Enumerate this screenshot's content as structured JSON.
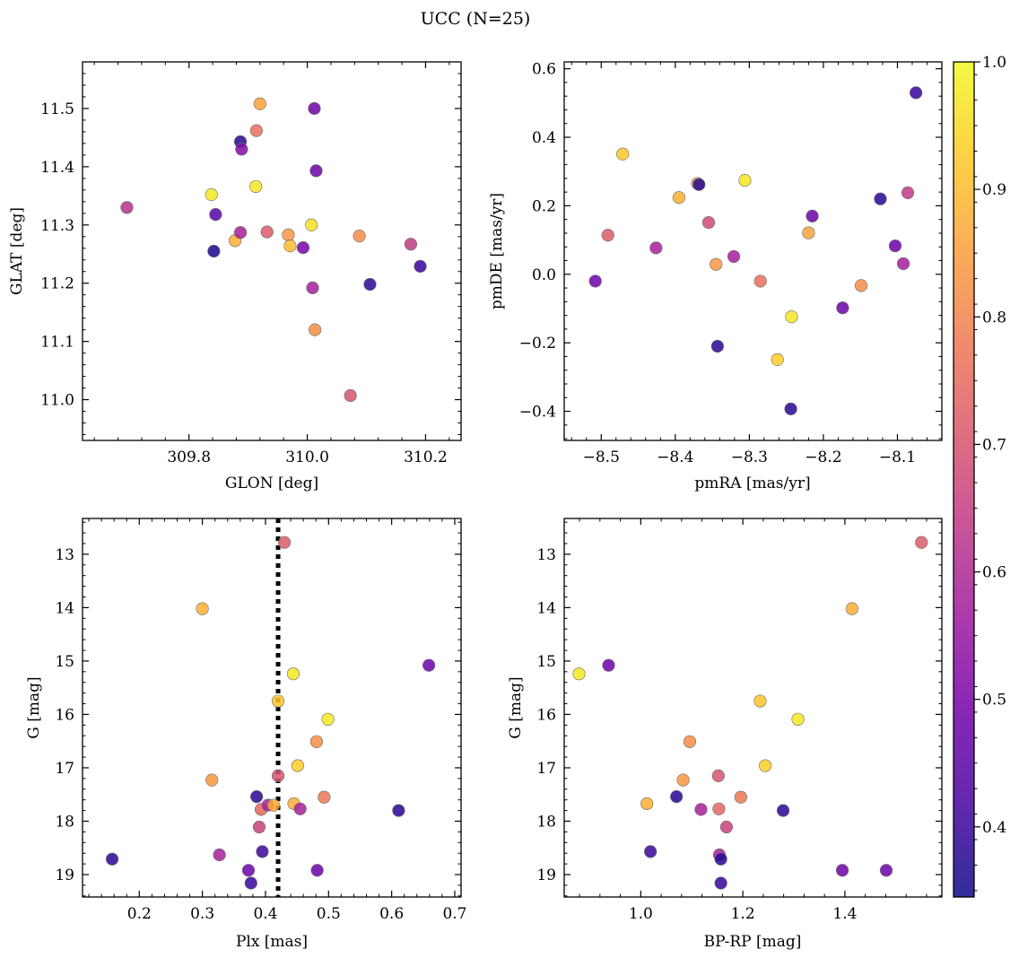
{
  "figure": {
    "title": "UCC (N=25)",
    "colorbar": {
      "range": [
        0.345,
        1.0
      ],
      "ticks": [
        0.4,
        0.5,
        0.6,
        0.7,
        0.8,
        0.9,
        1.0
      ],
      "tick_labels": [
        "0.4",
        "0.5",
        "0.6",
        "0.7",
        "0.8",
        "0.9",
        "1.0"
      ],
      "colormap": "plasma",
      "colormap_stops": [
        "#0d0887",
        "#46039f",
        "#7201a8",
        "#9c179e",
        "#bd3786",
        "#d8576b",
        "#ed7953",
        "#fb9f3a",
        "#fdca26",
        "#f0f921"
      ]
    }
  },
  "chart_data": [
    {
      "type": "scatter",
      "xlabel": "GLON [deg]",
      "ylabel": "GLAT [deg]",
      "xlim": [
        309.62,
        310.26
      ],
      "ylim": [
        10.93,
        11.58
      ],
      "invert_y": false,
      "xticks": [
        309.8,
        310.0,
        310.2
      ],
      "xtick_labels": [
        "309.8",
        "310.0",
        "310.2"
      ],
      "yticks": [
        11.0,
        11.1,
        11.2,
        11.3,
        11.4,
        11.5
      ],
      "ytick_labels": [
        "11.0",
        "11.1",
        "11.2",
        "11.3",
        "11.4",
        "11.5"
      ],
      "points": [
        {
          "x": 309.695,
          "y": 11.33,
          "c": 0.62
        },
        {
          "x": 309.838,
          "y": 11.352,
          "c": 0.97
        },
        {
          "x": 309.842,
          "y": 11.255,
          "c": 0.36
        },
        {
          "x": 309.845,
          "y": 11.318,
          "c": 0.44
        },
        {
          "x": 309.878,
          "y": 11.273,
          "c": 0.88
        },
        {
          "x": 309.887,
          "y": 11.443,
          "c": 0.38
        },
        {
          "x": 309.887,
          "y": 11.287,
          "c": 0.58
        },
        {
          "x": 309.889,
          "y": 11.43,
          "c": 0.52
        },
        {
          "x": 309.913,
          "y": 11.366,
          "c": 0.97
        },
        {
          "x": 309.914,
          "y": 11.462,
          "c": 0.76
        },
        {
          "x": 309.92,
          "y": 11.508,
          "c": 0.86
        },
        {
          "x": 309.932,
          "y": 11.288,
          "c": 0.72
        },
        {
          "x": 309.968,
          "y": 11.283,
          "c": 0.84
        },
        {
          "x": 309.971,
          "y": 11.264,
          "c": 0.9
        },
        {
          "x": 309.993,
          "y": 11.261,
          "c": 0.5
        },
        {
          "x": 310.007,
          "y": 11.3,
          "c": 0.96
        },
        {
          "x": 310.009,
          "y": 11.192,
          "c": 0.58
        },
        {
          "x": 310.012,
          "y": 11.5,
          "c": 0.48
        },
        {
          "x": 310.013,
          "y": 11.12,
          "c": 0.82
        },
        {
          "x": 310.015,
          "y": 11.393,
          "c": 0.48
        },
        {
          "x": 310.073,
          "y": 11.007,
          "c": 0.7
        },
        {
          "x": 310.088,
          "y": 11.281,
          "c": 0.82
        },
        {
          "x": 310.106,
          "y": 11.198,
          "c": 0.38
        },
        {
          "x": 310.175,
          "y": 11.267,
          "c": 0.64
        },
        {
          "x": 310.191,
          "y": 11.229,
          "c": 0.4
        }
      ]
    },
    {
      "type": "scatter",
      "xlabel": "pmRA [mas/yr]",
      "ylabel": "pmDE [mas/yr]",
      "xlim": [
        -8.55,
        -8.04
      ],
      "ylim": [
        -0.485,
        0.62
      ],
      "invert_y": false,
      "xticks": [
        -8.5,
        -8.4,
        -8.3,
        -8.2,
        -8.1
      ],
      "xtick_labels": [
        "−8.5",
        "−8.4",
        "−8.3",
        "−8.2",
        "−8.1"
      ],
      "yticks": [
        -0.4,
        -0.2,
        0.0,
        0.2,
        0.4,
        0.6
      ],
      "ytick_labels": [
        "−0.4",
        "−0.2",
        "0.0",
        "0.2",
        "0.4",
        "0.6"
      ],
      "points": [
        {
          "x": -8.508,
          "y": -0.02,
          "c": 0.48
        },
        {
          "x": -8.491,
          "y": 0.114,
          "c": 0.72
        },
        {
          "x": -8.471,
          "y": 0.351,
          "c": 0.92
        },
        {
          "x": -8.426,
          "y": 0.077,
          "c": 0.58
        },
        {
          "x": -8.395,
          "y": 0.224,
          "c": 0.88
        },
        {
          "x": -8.37,
          "y": 0.265,
          "c": 0.87
        },
        {
          "x": -8.368,
          "y": 0.262,
          "c": 0.38
        },
        {
          "x": -8.355,
          "y": 0.151,
          "c": 0.68
        },
        {
          "x": -8.345,
          "y": 0.029,
          "c": 0.84
        },
        {
          "x": -8.343,
          "y": -0.21,
          "c": 0.38
        },
        {
          "x": -8.321,
          "y": 0.052,
          "c": 0.58
        },
        {
          "x": -8.306,
          "y": 0.274,
          "c": 0.97
        },
        {
          "x": -8.285,
          "y": -0.02,
          "c": 0.76
        },
        {
          "x": -8.262,
          "y": -0.249,
          "c": 0.93
        },
        {
          "x": -8.244,
          "y": -0.393,
          "c": 0.38
        },
        {
          "x": -8.243,
          "y": -0.124,
          "c": 0.97
        },
        {
          "x": -8.22,
          "y": 0.121,
          "c": 0.86
        },
        {
          "x": -8.215,
          "y": 0.17,
          "c": 0.48
        },
        {
          "x": -8.174,
          "y": -0.098,
          "c": 0.48
        },
        {
          "x": -8.149,
          "y": -0.033,
          "c": 0.82
        },
        {
          "x": -8.123,
          "y": 0.22,
          "c": 0.38
        },
        {
          "x": -8.103,
          "y": 0.083,
          "c": 0.48
        },
        {
          "x": -8.092,
          "y": 0.031,
          "c": 0.58
        },
        {
          "x": -8.086,
          "y": 0.238,
          "c": 0.64
        },
        {
          "x": -8.075,
          "y": 0.53,
          "c": 0.4
        }
      ]
    },
    {
      "type": "scatter",
      "xlabel": "Plx [mas]",
      "ylabel": "G [mag]",
      "xlim": [
        0.11,
        0.71
      ],
      "ylim": [
        12.33,
        19.42
      ],
      "invert_y": true,
      "xticks": [
        0.2,
        0.3,
        0.4,
        0.5,
        0.6,
        0.7
      ],
      "xtick_labels": [
        "0.2",
        "0.3",
        "0.4",
        "0.5",
        "0.6",
        "0.7"
      ],
      "yticks": [
        13,
        14,
        15,
        16,
        17,
        18,
        19
      ],
      "ytick_labels": [
        "13",
        "14",
        "15",
        "16",
        "17",
        "18",
        "19"
      ],
      "vline": {
        "x": 0.42,
        "style": "dotted",
        "color": "#000000"
      },
      "points": [
        {
          "x": 0.157,
          "y": 18.71,
          "c": 0.38
        },
        {
          "x": 0.3,
          "y": 14.02,
          "c": 0.88
        },
        {
          "x": 0.315,
          "y": 17.23,
          "c": 0.84
        },
        {
          "x": 0.327,
          "y": 18.63,
          "c": 0.58
        },
        {
          "x": 0.373,
          "y": 18.92,
          "c": 0.48
        },
        {
          "x": 0.377,
          "y": 19.16,
          "c": 0.4
        },
        {
          "x": 0.386,
          "y": 17.54,
          "c": 0.38
        },
        {
          "x": 0.39,
          "y": 18.11,
          "c": 0.66
        },
        {
          "x": 0.393,
          "y": 17.78,
          "c": 0.74
        },
        {
          "x": 0.395,
          "y": 18.57,
          "c": 0.4
        },
        {
          "x": 0.404,
          "y": 17.7,
          "c": 0.58
        },
        {
          "x": 0.413,
          "y": 17.7,
          "c": 0.88
        },
        {
          "x": 0.42,
          "y": 15.75,
          "c": 0.92
        },
        {
          "x": 0.42,
          "y": 17.15,
          "c": 0.7
        },
        {
          "x": 0.43,
          "y": 12.78,
          "c": 0.72
        },
        {
          "x": 0.444,
          "y": 15.24,
          "c": 0.97
        },
        {
          "x": 0.445,
          "y": 17.67,
          "c": 0.88
        },
        {
          "x": 0.451,
          "y": 16.96,
          "c": 0.93
        },
        {
          "x": 0.455,
          "y": 17.77,
          "c": 0.58
        },
        {
          "x": 0.481,
          "y": 16.51,
          "c": 0.82
        },
        {
          "x": 0.482,
          "y": 18.92,
          "c": 0.48
        },
        {
          "x": 0.493,
          "y": 17.55,
          "c": 0.78
        },
        {
          "x": 0.499,
          "y": 16.09,
          "c": 0.97
        },
        {
          "x": 0.611,
          "y": 17.8,
          "c": 0.38
        },
        {
          "x": 0.659,
          "y": 15.08,
          "c": 0.48
        }
      ]
    },
    {
      "type": "scatter",
      "xlabel": "BP-RP [mag]",
      "ylabel": "G [mag]",
      "xlim": [
        0.85,
        1.59
      ],
      "ylim": [
        12.33,
        19.42
      ],
      "invert_y": true,
      "xticks": [
        1.0,
        1.2,
        1.4
      ],
      "xtick_labels": [
        "1.0",
        "1.2",
        "1.4"
      ],
      "yticks": [
        13,
        14,
        15,
        16,
        17,
        18,
        19
      ],
      "ytick_labels": [
        "13",
        "14",
        "15",
        "16",
        "17",
        "18",
        "19"
      ],
      "points": [
        {
          "x": 0.879,
          "y": 15.24,
          "c": 0.97
        },
        {
          "x": 0.937,
          "y": 15.08,
          "c": 0.48
        },
        {
          "x": 1.012,
          "y": 17.67,
          "c": 0.88
        },
        {
          "x": 1.019,
          "y": 18.57,
          "c": 0.4
        },
        {
          "x": 1.07,
          "y": 17.54,
          "c": 0.38
        },
        {
          "x": 1.083,
          "y": 17.23,
          "c": 0.84
        },
        {
          "x": 1.096,
          "y": 16.51,
          "c": 0.82
        },
        {
          "x": 1.118,
          "y": 17.78,
          "c": 0.58
        },
        {
          "x": 1.152,
          "y": 17.15,
          "c": 0.7
        },
        {
          "x": 1.153,
          "y": 17.77,
          "c": 0.74
        },
        {
          "x": 1.154,
          "y": 18.63,
          "c": 0.58
        },
        {
          "x": 1.157,
          "y": 18.71,
          "c": 0.38
        },
        {
          "x": 1.157,
          "y": 19.16,
          "c": 0.4
        },
        {
          "x": 1.168,
          "y": 18.11,
          "c": 0.66
        },
        {
          "x": 1.196,
          "y": 17.55,
          "c": 0.78
        },
        {
          "x": 1.234,
          "y": 15.75,
          "c": 0.92
        },
        {
          "x": 1.244,
          "y": 16.96,
          "c": 0.93
        },
        {
          "x": 1.279,
          "y": 17.8,
          "c": 0.38
        },
        {
          "x": 1.308,
          "y": 16.09,
          "c": 0.97
        },
        {
          "x": 1.395,
          "y": 18.92,
          "c": 0.48
        },
        {
          "x": 1.414,
          "y": 14.02,
          "c": 0.88
        },
        {
          "x": 1.481,
          "y": 18.92,
          "c": 0.48
        },
        {
          "x": 1.55,
          "y": 12.78,
          "c": 0.72
        }
      ]
    }
  ]
}
